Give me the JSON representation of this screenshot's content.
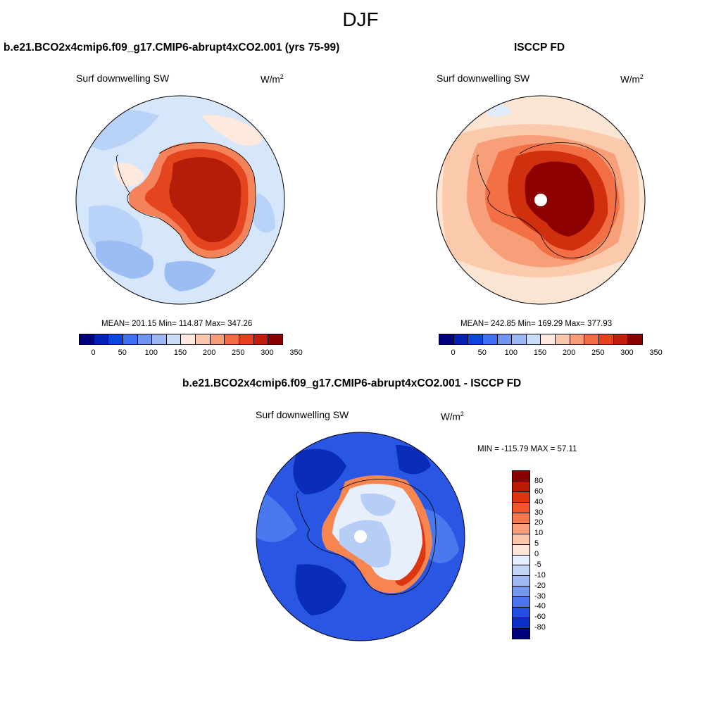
{
  "suptitle": "DJF",
  "panels": {
    "model": {
      "title": "b.e21.BCO2x4cmip6.f09_g17.CMIP6-abrupt4xCO2.001 (yrs 75-99)",
      "variable": "Surf downwelling SW",
      "units_base": "W/m",
      "units_exp": "2",
      "stats": "MEAN= 201.15  Min= 114.87  Max= 347.26",
      "mean": 201.15,
      "min": 114.87,
      "max": 347.26
    },
    "obs": {
      "title": "ISCCP FD",
      "variable": "Surf downwelling SW",
      "units_base": "W/m",
      "units_exp": "2",
      "stats": "MEAN= 242.85  Min= 169.29  Max= 377.93",
      "mean": 242.85,
      "min": 169.29,
      "max": 377.93
    },
    "diff": {
      "title": "b.e21.BCO2x4cmip6.f09_g17.CMIP6-abrupt4xCO2.001 - ISCCP FD",
      "variable": "Surf downwelling SW",
      "units_base": "W/m",
      "units_exp": "2",
      "stats": "MIN = -115.79 MAX =  57.11",
      "min": -115.79,
      "max": 57.11
    }
  },
  "colorbar_abs": {
    "colors": [
      "#00007f",
      "#0021b3",
      "#0b45e0",
      "#3f6ff3",
      "#6f95f5",
      "#9db8f5",
      "#cadcf8",
      "#fde9dd",
      "#fbc7ad",
      "#f79c76",
      "#f46c44",
      "#e8401d",
      "#c21d0c",
      "#8a0000"
    ],
    "tick_labels": [
      "0",
      "50",
      "100",
      "150",
      "200",
      "250",
      "300",
      "350"
    ]
  },
  "colorbar_diff": {
    "colors_top_to_bottom": [
      "#8a0000",
      "#b81a05",
      "#dd3510",
      "#f2552a",
      "#f7784d",
      "#f9a07b",
      "#fbc6a8",
      "#fde6d8",
      "#e4eefc",
      "#c3d5f7",
      "#9eb9f3",
      "#7698f1",
      "#4c74ee",
      "#2451e3",
      "#0b2fc7",
      "#00007f"
    ],
    "tick_labels": [
      "80",
      "60",
      "40",
      "30",
      "20",
      "10",
      "5",
      "0",
      "-5",
      "-10",
      "-20",
      "-30",
      "-40",
      "-60",
      "-80"
    ]
  },
  "map_colors": {
    "model": {
      "ocean": "#d6e6fb",
      "ocean_alt": "#b9d2f8",
      "ocean_low": "#9cbcf4",
      "ocean_warm": "#fde9dd",
      "land_edge": "#f4825a",
      "land_mid": "#e4451f",
      "land_core": "#b51d08"
    },
    "obs": {
      "ocean": "#fde5d4",
      "ocean_warm": "#fbc9ac",
      "ocean_mid": "#f79f78",
      "land_edge": "#f36f45",
      "land_mid": "#d1300f",
      "land_core": "#8d0000",
      "ocean_cool": "#e0ecfb"
    },
    "diff": {
      "ocean": "#2a56e4",
      "ocean_deep": "#0a2db9",
      "ocean_mid": "#4a78ef",
      "land_pale": "#e8effc",
      "land_light": "#b6cdf6",
      "coast_warm": "#f6854f",
      "coast_hot": "#dd3510"
    }
  }
}
